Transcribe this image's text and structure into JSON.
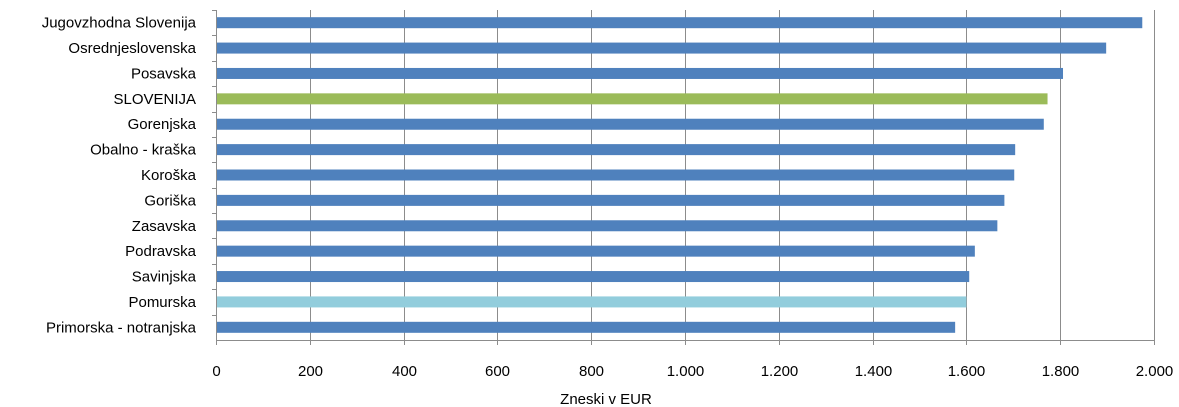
{
  "chart_data": {
    "type": "bar",
    "orientation": "horizontal",
    "categories": [
      "Jugovzhodna Slovenija",
      "Osrednjeslovenska",
      "Posavska",
      "SLOVENIJA",
      "Gorenjska",
      "Obalno - kraška",
      "Koroška",
      "Goriška",
      "Zasavska",
      "Podravska",
      "Savinjska",
      "Pomurska",
      "Primorska - notranjska"
    ],
    "values": [
      1975,
      1898,
      1806,
      1773,
      1765,
      1704,
      1702,
      1681,
      1666,
      1618,
      1606,
      1600,
      1576
    ],
    "bar_colors": [
      "#4f81bd",
      "#4f81bd",
      "#4f81bd",
      "#9bbb59",
      "#4f81bd",
      "#4f81bd",
      "#4f81bd",
      "#4f81bd",
      "#4f81bd",
      "#4f81bd",
      "#4f81bd",
      "#92cddc",
      "#4f81bd"
    ],
    "xlim": [
      0,
      2000
    ],
    "x_ticks": [
      0,
      200,
      400,
      600,
      800,
      1000,
      1200,
      1400,
      1600,
      1800,
      2000
    ],
    "x_tick_labels": [
      "0",
      "200",
      "400",
      "600",
      "800",
      "1.000",
      "1.200",
      "1.400",
      "1.600",
      "1.800",
      "2.000"
    ],
    "xlabel": "Zneski v EUR",
    "ylabel": "",
    "title": "",
    "grid": "vertical"
  }
}
